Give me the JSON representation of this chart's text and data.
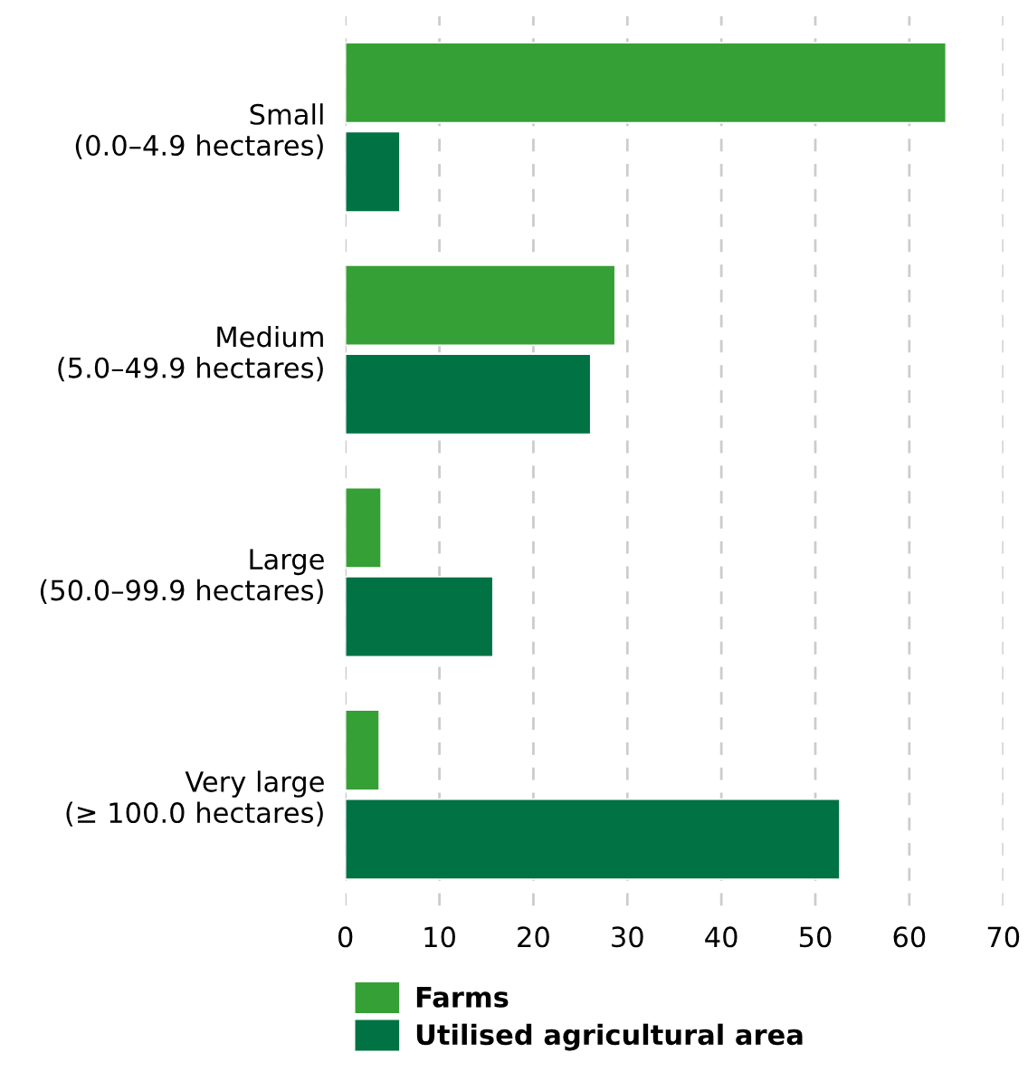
{
  "chart_data": {
    "type": "bar",
    "orientation": "horizontal",
    "categories": [
      "Small\n(0.0–4.9 hectares)",
      "Medium\n(5.0–49.9 hectares)",
      "Large\n(50.0–99.9 hectares)",
      "Very large\n(≥ 100.0 hectares)"
    ],
    "series": [
      {
        "name": "Farms",
        "color": "#35a035",
        "values": [
          63.9,
          28.7,
          3.8,
          3.6
        ]
      },
      {
        "name": "Utilised agricultural area",
        "color": "#007243",
        "values": [
          5.8,
          26.1,
          15.7,
          52.6
        ]
      }
    ],
    "xlim": [
      0,
      70
    ],
    "xticks": [
      0,
      10,
      20,
      30,
      40,
      50,
      60,
      70
    ],
    "grid": "x",
    "legend": "bottom left"
  }
}
